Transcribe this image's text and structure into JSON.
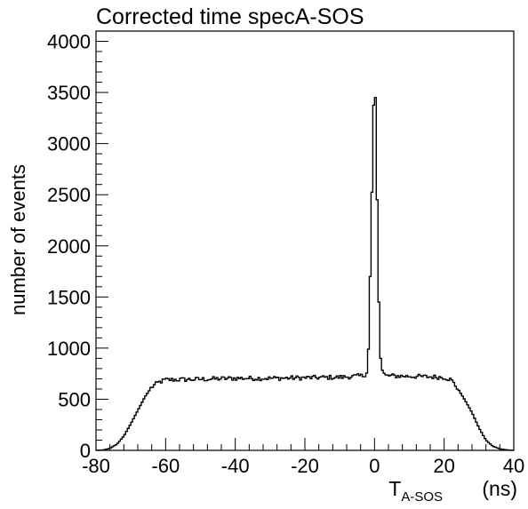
{
  "chart_data": {
    "type": "histogram",
    "title": "Corrected time specA-SOS",
    "ylabel": "number of events",
    "xlabel": {
      "main": "T",
      "subscript": "A-SOS",
      "unit": "(ns)"
    },
    "xlim": [
      -80,
      40
    ],
    "ylim": [
      0,
      4100
    ],
    "x_ticks": [
      -80,
      -60,
      -40,
      -20,
      0,
      20,
      40
    ],
    "y_ticks": [
      0,
      500,
      1000,
      1500,
      2000,
      2500,
      3000,
      3500,
      4000
    ],
    "grid": false,
    "bin_width": 0.5,
    "profile": [
      [
        -80,
        0
      ],
      [
        -78,
        3
      ],
      [
        -76,
        20
      ],
      [
        -74,
        60
      ],
      [
        -72,
        140
      ],
      [
        -70,
        260
      ],
      [
        -68,
        390
      ],
      [
        -66,
        520
      ],
      [
        -64,
        620
      ],
      [
        -62,
        665
      ],
      [
        -60,
        690
      ],
      [
        -50,
        695
      ],
      [
        -40,
        705
      ],
      [
        -30,
        705
      ],
      [
        -20,
        710
      ],
      [
        -10,
        715
      ],
      [
        -3,
        730
      ],
      [
        -2,
        780
      ],
      [
        -1.5,
        1200
      ],
      [
        -1,
        2200
      ],
      [
        -0.5,
        2850
      ],
      [
        0,
        3900
      ],
      [
        0.5,
        3000
      ],
      [
        1,
        1900
      ],
      [
        1.5,
        1000
      ],
      [
        2,
        800
      ],
      [
        3,
        730
      ],
      [
        10,
        725
      ],
      [
        20,
        715
      ],
      [
        22,
        690
      ],
      [
        24,
        600
      ],
      [
        26,
        490
      ],
      [
        28,
        370
      ],
      [
        30,
        220
      ],
      [
        32,
        100
      ],
      [
        34,
        40
      ],
      [
        36,
        15
      ],
      [
        38,
        4
      ],
      [
        40,
        0
      ]
    ]
  }
}
